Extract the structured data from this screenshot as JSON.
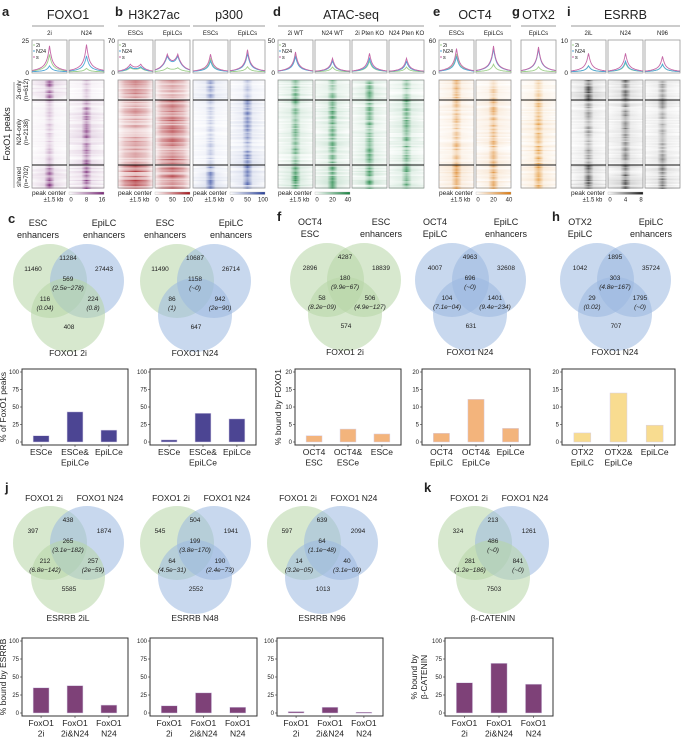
{
  "peak_center": "peak center",
  "window": "±1.5 kb",
  "profile_legend": [
    "2i",
    "N24",
    "s"
  ],
  "profile_colors": {
    "2i": "#9fd08c",
    "N24": "#4fa6d6",
    "s": "#c467a6"
  },
  "row_title": "FoxO1 peaks",
  "row_groups": [
    {
      "label": "2i-only",
      "n": "(n=612)"
    },
    {
      "label": "N24-only",
      "n": "(n=2138)"
    },
    {
      "label": "shared",
      "n": "(n=702)"
    }
  ],
  "heatmap_panels": [
    {
      "letter": "a",
      "title": "FOXO1",
      "ymax": 25,
      "ymax_label": "25",
      "ymin_label": "0",
      "colorbar": [
        "0",
        "8",
        "16"
      ],
      "color": "#7a2a78",
      "broad": false,
      "tracks": [
        {
          "label": "2i",
          "signal": [
            0.85,
            0.35,
            0.95
          ],
          "profile": {
            "2i": 14,
            "N24": 5,
            "s": 21
          }
        },
        {
          "label": "N24",
          "signal": [
            0.35,
            0.85,
            0.95
          ],
          "profile": {
            "2i": 3,
            "N24": 13,
            "s": 22
          }
        }
      ]
    },
    {
      "letter": "b",
      "title": "H3K27ac",
      "ymax": 70,
      "ymax_label": "70",
      "ymin_label": "0",
      "colorbar": [
        "0",
        "50",
        "100"
      ],
      "color": "#a3141a",
      "broad": true,
      "tracks": [
        {
          "label": "ESCs",
          "signal": [
            0.55,
            0.5,
            0.85
          ],
          "profile": {
            "2i": 12,
            "N24": 15,
            "s": 22
          }
        },
        {
          "label": "EpiLCs",
          "signal": [
            0.45,
            0.75,
            0.85
          ],
          "profile": {
            "2i": 12,
            "N24": 45,
            "s": 50
          }
        }
      ]
    },
    {
      "letter": "",
      "title": "p300",
      "ymax": 70,
      "ymax_label": "",
      "ymin_label": "",
      "colorbar": [
        "0",
        "50",
        "100"
      ],
      "color": "#28409a",
      "broad": false,
      "tracks": [
        {
          "label": "ESCs",
          "signal": [
            0.6,
            0.3,
            0.75
          ],
          "profile": {
            "2i": 30,
            "N24": 25,
            "s": 40
          }
        },
        {
          "label": "EpiLCs",
          "signal": [
            0.35,
            0.7,
            0.8
          ],
          "profile": {
            "2i": 12,
            "N24": 42,
            "s": 50
          }
        }
      ]
    },
    {
      "letter": "d",
      "title": "ATAC-seq",
      "ymax": 50,
      "ymax_label": "50",
      "ymin_label": "0",
      "colorbar": [
        "0",
        "20",
        "40"
      ],
      "color": "#17813f",
      "broad": false,
      "tracks": [
        {
          "label": "2i WT",
          "signal": [
            0.8,
            0.75,
            0.9
          ],
          "profile": {
            "2i": 28,
            "N24": 25,
            "s": 32
          }
        },
        {
          "label": "N24 WT",
          "signal": [
            0.6,
            0.8,
            0.85
          ],
          "profile": {
            "2i": 8,
            "N24": 18,
            "s": 22
          }
        },
        {
          "label": "2i Pten KO",
          "signal": [
            0.8,
            0.75,
            0.9
          ],
          "profile": {
            "2i": 18,
            "N24": 22,
            "s": 30
          }
        },
        {
          "label": "N24 Pten KO",
          "signal": [
            0.55,
            0.8,
            0.85
          ],
          "profile": {
            "2i": 8,
            "N24": 17,
            "s": 22
          }
        }
      ]
    },
    {
      "letter": "e",
      "title": "OCT4",
      "ymax": 60,
      "ymax_label": "60",
      "ymin_label": "0",
      "colorbar": [
        "0",
        "20",
        "40"
      ],
      "color": "#d9780e",
      "broad": false,
      "tracks": [
        {
          "label": "ESCs",
          "signal": [
            0.65,
            0.6,
            0.85
          ],
          "profile": {
            "2i": 35,
            "N24": 30,
            "s": 45
          }
        },
        {
          "label": "EpiLCs",
          "signal": [
            0.5,
            0.7,
            0.8
          ],
          "profile": {
            "2i": 15,
            "N24": 45,
            "s": 50
          }
        }
      ]
    },
    {
      "letter": "g",
      "title": "OTX2",
      "ymax": 60,
      "ymax_label": "",
      "ymin_label": "",
      "colorbar": [],
      "color": "#e08a1e",
      "broad": false,
      "tracks": [
        {
          "label": "EpiLCs",
          "signal": [
            0.55,
            0.8,
            0.85
          ],
          "profile": {
            "2i": 10,
            "N24": 45,
            "s": 48
          }
        }
      ]
    },
    {
      "letter": "i",
      "title": "ESRRB",
      "ymax": 10,
      "ymax_label": "10",
      "ymin_label": "0",
      "colorbar": [
        "0",
        "4",
        "8"
      ],
      "color": "#1a1a1a",
      "broad": false,
      "tracks": [
        {
          "label": "2iL",
          "signal": [
            0.85,
            0.5,
            0.9
          ],
          "profile": {
            "2i": 2,
            "N24": 2,
            "s": 6
          }
        },
        {
          "label": "N24",
          "signal": [
            0.7,
            0.6,
            0.85
          ],
          "profile": {
            "2i": 3,
            "N24": 3.5,
            "s": 6
          }
        },
        {
          "label": "N96",
          "signal": [
            0.5,
            0.5,
            0.7
          ],
          "profile": {
            "2i": 2.5,
            "N24": 2.5,
            "s": 5
          }
        }
      ]
    }
  ],
  "panel_letters": {
    "c": "c",
    "f": "f",
    "h": "h",
    "j": "j",
    "k": "k"
  },
  "venn_colors": {
    "green": "#b7d5a6",
    "blue": "#9bb8e0"
  },
  "venns": [
    {
      "sets": [
        [
          "ESC",
          "enhancers"
        ],
        [
          "EpiLC",
          "enhancers"
        ],
        [
          "FOXO1 2i"
        ]
      ],
      "colors": [
        "green",
        "blue",
        "green"
      ],
      "regions": {
        "A": "11460",
        "AB": "11284",
        "B": "27443",
        "ABC": "569",
        "ABC_p": "(2.5e−278)",
        "AC": "116",
        "AC_p": "(0.04)",
        "BC": "224",
        "BC_p": "(0.8)",
        "C": "408"
      }
    },
    {
      "sets": [
        [
          "ESC",
          "enhancers"
        ],
        [
          "EpiLC",
          "enhancers"
        ],
        [
          "FOXO1 N24"
        ]
      ],
      "colors": [
        "green",
        "blue",
        "blue"
      ],
      "regions": {
        "A": "11490",
        "AB": "10687",
        "B": "26714",
        "ABC": "1158",
        "ABC_p": "(~0)",
        "AC": "86",
        "AC_p": "(1)",
        "BC": "942",
        "BC_p": "(2e−90)",
        "C": "647"
      }
    },
    {
      "sets": [
        [
          "OCT4",
          "ESC"
        ],
        [
          "ESC",
          "enhancers"
        ],
        [
          "FOXO1 2i"
        ]
      ],
      "colors": [
        "green",
        "green",
        "green"
      ],
      "regions": {
        "A": "2896",
        "AB": "4287",
        "B": "18839",
        "ABC": "180",
        "ABC_p": "(9.9e−67)",
        "AC": "58",
        "AC_p": "(8.2e−09)",
        "BC": "506",
        "BC_p": "(4.9e−127)",
        "C": "574"
      }
    },
    {
      "sets": [
        [
          "OCT4",
          "EpiLC"
        ],
        [
          "EpiLC",
          "enhancers"
        ],
        [
          "FOXO1 N24"
        ]
      ],
      "colors": [
        "blue",
        "blue",
        "blue"
      ],
      "regions": {
        "A": "4007",
        "AB": "4963",
        "B": "32608",
        "ABC": "696",
        "ABC_p": "(~0)",
        "AC": "104",
        "AC_p": "(7.1e−04)",
        "BC": "1401",
        "BC_p": "(9.4e−234)",
        "C": "631"
      }
    },
    {
      "sets": [
        [
          "OTX2",
          "EpiLC"
        ],
        [
          "EpiLC",
          "enhancers"
        ],
        [
          "FOXO1 N24"
        ]
      ],
      "colors": [
        "blue",
        "blue",
        "blue"
      ],
      "regions": {
        "A": "1042",
        "AB": "1895",
        "B": "35724",
        "ABC": "303",
        "ABC_p": "(4.8e−167)",
        "AC": "29",
        "AC_p": "(0.02)",
        "BC": "1795",
        "BC_p": "(~0)",
        "C": "707"
      }
    },
    {
      "sets": [
        [
          "FOXO1 2i"
        ],
        [
          "FOXO1 N24"
        ],
        [
          "ESRRB 2iL"
        ]
      ],
      "colors": [
        "green",
        "blue",
        "green"
      ],
      "regions": {
        "A": "397",
        "AB": "438",
        "B": "1874",
        "ABC": "265",
        "ABC_p": "(3.1e−182)",
        "AC": "212",
        "AC_p": "(6.8e−142)",
        "BC": "257",
        "BC_p": "(2e−59)",
        "C": "5585"
      }
    },
    {
      "sets": [
        [
          "FOXO1 2i"
        ],
        [
          "FOXO1 N24"
        ],
        [
          "ESRRB N48"
        ]
      ],
      "colors": [
        "green",
        "blue",
        "blue"
      ],
      "regions": {
        "A": "545",
        "AB": "504",
        "B": "1941",
        "ABC": "199",
        "ABC_p": "(3.8e−170)",
        "AC": "64",
        "AC_p": "(4.5e−31)",
        "BC": "190",
        "BC_p": "(2.4e−73)",
        "C": "2552"
      }
    },
    {
      "sets": [
        [
          "FOXO1 2i"
        ],
        [
          "FOXO1 N24"
        ],
        [
          "ESRRB N96"
        ]
      ],
      "colors": [
        "green",
        "blue",
        "blue"
      ],
      "regions": {
        "A": "597",
        "AB": "639",
        "B": "2094",
        "ABC": "64",
        "ABC_p": "(1.1e−48)",
        "AC": "14",
        "AC_p": "(3.2e−05)",
        "BC": "40",
        "BC_p": "(3.1e−09)",
        "C": "1013"
      }
    },
    {
      "sets": [
        [
          "FOXO1 2i"
        ],
        [
          "FOXO1 N24"
        ],
        [
          "β-CATENIN"
        ]
      ],
      "colors": [
        "green",
        "blue",
        "green"
      ],
      "regions": {
        "A": "324",
        "AB": "213",
        "B": "1261",
        "ABC": "486",
        "ABC_p": "(~0)",
        "AC": "281",
        "AC_p": "(1.2e−186)",
        "BC": "841",
        "BC_p": "(~0)",
        "C": "7503"
      }
    }
  ],
  "chart_data": [
    {
      "type": "bar",
      "ylabel": [
        "% of FoxO1 peaks"
      ],
      "ylim": [
        0,
        100
      ],
      "ticks": [
        "0",
        "25",
        "50",
        "75",
        "100"
      ],
      "color": "#4c4593",
      "categories": [
        [
          "ESCe"
        ],
        [
          "ESCe&",
          "EpiLCe"
        ],
        [
          "EpiLCe"
        ]
      ],
      "values": [
        9,
        43,
        17
      ]
    },
    {
      "type": "bar",
      "ylabel": [],
      "ylim": [
        0,
        100
      ],
      "ticks": [
        "0",
        "25",
        "50",
        "75",
        "100"
      ],
      "color": "#4c4593",
      "categories": [
        [
          "ESCe"
        ],
        [
          "ESCe&",
          "EpiLCe"
        ],
        [
          "EpiLCe"
        ]
      ],
      "values": [
        3,
        41,
        33
      ]
    },
    {
      "type": "bar",
      "ylabel": [
        "% bound by FOXO1"
      ],
      "ylim": [
        0,
        20
      ],
      "ticks": [
        "0",
        "5",
        "10",
        "15",
        "20"
      ],
      "color": "#f3b47c",
      "categories": [
        [
          "OCT4",
          "ESC"
        ],
        [
          "OCT4&",
          "ESCe"
        ],
        [
          "ESCe"
        ]
      ],
      "values": [
        1.8,
        3.7,
        2.3
      ]
    },
    {
      "type": "bar",
      "ylabel": [],
      "ylim": [
        0,
        20
      ],
      "ticks": [
        "0",
        "5",
        "10",
        "15",
        "20"
      ],
      "color": "#f3b47c",
      "categories": [
        [
          "OCT4",
          "EpiLC"
        ],
        [
          "OCT4&",
          "EpiLCe"
        ],
        [
          "EpiLCe"
        ]
      ],
      "values": [
        2.5,
        12.2,
        3.9
      ]
    },
    {
      "type": "bar",
      "ylabel": [],
      "ylim": [
        0,
        20
      ],
      "ticks": [
        "0",
        "5",
        "10",
        "15",
        "20"
      ],
      "color": "#f8dc90",
      "categories": [
        [
          "OTX2",
          "EpiLC"
        ],
        [
          "OTX2&",
          "EpiLCe"
        ],
        [
          "EpiLCe"
        ]
      ],
      "values": [
        2.6,
        14,
        4.8
      ]
    },
    {
      "type": "bar",
      "ylabel": [
        "% bound by ESRRB"
      ],
      "ylim": [
        0,
        100
      ],
      "ticks": [
        "0",
        "25",
        "50",
        "75",
        "100"
      ],
      "color": "#7e4178",
      "categories": [
        [
          "FoxO1",
          "2i"
        ],
        [
          "FoxO1",
          "2i&N24"
        ],
        [
          "FoxO1",
          "N24"
        ]
      ],
      "values": [
        35,
        38,
        11
      ]
    },
    {
      "type": "bar",
      "ylabel": [],
      "ylim": [
        0,
        100
      ],
      "ticks": [
        "0",
        "25",
        "50",
        "75",
        "100"
      ],
      "color": "#7e4178",
      "categories": [
        [
          "FoxO1",
          "2i"
        ],
        [
          "FoxO1",
          "2i&N24"
        ],
        [
          "FoxO1",
          "N24"
        ]
      ],
      "values": [
        10,
        28,
        8
      ]
    },
    {
      "type": "bar",
      "ylabel": [],
      "ylim": [
        0,
        100
      ],
      "ticks": [
        "0",
        "25",
        "50",
        "75",
        "100"
      ],
      "color": "#7e4178",
      "categories": [
        [
          "FoxO1",
          "2i"
        ],
        [
          "FoxO1",
          "2i&N24"
        ],
        [
          "FoxO1",
          "N24"
        ]
      ],
      "values": [
        2,
        8,
        1
      ]
    },
    {
      "type": "bar",
      "ylabel": [
        "% bound by",
        "β-CATENIN"
      ],
      "ylim": [
        0,
        100
      ],
      "ticks": [
        "0",
        "25",
        "50",
        "75",
        "100"
      ],
      "color": "#7e4178",
      "categories": [
        [
          "FoxO1",
          "2i"
        ],
        [
          "FoxO1",
          "2i&N24"
        ],
        [
          "FoxO1",
          "N24"
        ]
      ],
      "values": [
        42,
        69,
        40
      ]
    }
  ]
}
